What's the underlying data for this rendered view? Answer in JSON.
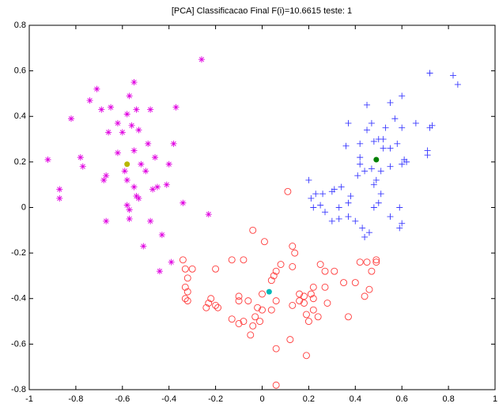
{
  "chart_data": {
    "type": "scatter",
    "title": "[PCA] Classificacao Final F(i)=10.6615 teste: 1",
    "xlim": [
      -1,
      1
    ],
    "xticks": [
      -1,
      -0.8,
      -0.6,
      -0.4,
      -0.2,
      0,
      0.2,
      0.4,
      0.6,
      0.8,
      1
    ],
    "ylim": [
      -0.8,
      0.8
    ],
    "yticks": [
      -0.8,
      -0.6,
      -0.4,
      -0.2,
      0,
      0.2,
      0.4,
      0.6,
      0.8
    ],
    "grid": false,
    "series": [
      {
        "color": "#e000e0",
        "marker": "*",
        "x": [
          -0.92,
          -0.82,
          -0.87,
          -0.87,
          -0.78,
          -0.77,
          -0.74,
          -0.71,
          -0.69,
          -0.67,
          -0.68,
          -0.67,
          -0.65,
          -0.62,
          -0.6,
          -0.58,
          -0.57,
          -0.55,
          -0.56,
          -0.54,
          -0.53,
          -0.55,
          -0.55,
          -0.54,
          -0.53,
          -0.52,
          -0.5,
          -0.49,
          -0.48,
          -0.59,
          -0.58,
          -0.58,
          -0.57,
          -0.57,
          -0.51,
          -0.48,
          -0.46,
          -0.47,
          -0.45,
          -0.43,
          -0.41,
          -0.4,
          -0.39,
          -0.37,
          -0.38,
          -0.44,
          -0.34,
          -0.26,
          -0.23,
          -0.62,
          -0.66
        ],
        "y": [
          0.21,
          0.39,
          0.08,
          0.04,
          0.22,
          0.18,
          0.47,
          0.52,
          0.43,
          0.14,
          0.12,
          -0.06,
          0.44,
          0.37,
          0.33,
          0.41,
          0.49,
          0.55,
          0.36,
          0.43,
          0.34,
          0.25,
          0.09,
          0.05,
          0.04,
          0.19,
          0.16,
          0.28,
          0.43,
          0.16,
          0.12,
          0.01,
          -0.01,
          -0.05,
          -0.17,
          -0.06,
          0.22,
          0.08,
          0.09,
          -0.12,
          0.1,
          0.19,
          -0.24,
          0.44,
          0.28,
          -0.28,
          0.02,
          0.65,
          -0.03,
          0.24,
          0.33
        ]
      },
      {
        "color": "#3a3aff",
        "marker": "+",
        "x": [
          0.37,
          0.36,
          0.42,
          0.45,
          0.45,
          0.47,
          0.5,
          0.52,
          0.52,
          0.53,
          0.55,
          0.57,
          0.6,
          0.6,
          0.66,
          0.72,
          0.73,
          0.72,
          0.82,
          0.84,
          0.71,
          0.71,
          0.6,
          0.61,
          0.62,
          0.55,
          0.51,
          0.48,
          0.47,
          0.44,
          0.42,
          0.42,
          0.41,
          0.38,
          0.37,
          0.33,
          0.33,
          0.3,
          0.27,
          0.26,
          0.23,
          0.21,
          0.2,
          0.22,
          0.25,
          0.3,
          0.31,
          0.34,
          0.37,
          0.4,
          0.43,
          0.46,
          0.44,
          0.48,
          0.5,
          0.55,
          0.59,
          0.6,
          0.59,
          0.51,
          0.49,
          0.55,
          0.58,
          0.48
        ],
        "y": [
          0.37,
          0.27,
          0.28,
          0.34,
          0.45,
          0.37,
          0.3,
          0.3,
          0.26,
          0.35,
          0.46,
          0.39,
          0.35,
          0.49,
          0.37,
          0.35,
          0.36,
          0.59,
          0.58,
          0.54,
          0.25,
          0.23,
          0.19,
          0.21,
          0.2,
          0.18,
          0.16,
          0.1,
          0.17,
          0.16,
          0.22,
          0.19,
          0.14,
          0.05,
          0.02,
          0.0,
          -0.05,
          0.07,
          -0.02,
          0.06,
          0.06,
          0.04,
          0.12,
          0.0,
          0.01,
          -0.06,
          0.08,
          0.09,
          -0.04,
          -0.06,
          -0.09,
          -0.11,
          -0.13,
          0.0,
          0.02,
          -0.04,
          0.0,
          -0.07,
          -0.09,
          0.06,
          0.12,
          0.26,
          0.28,
          0.29
        ]
      },
      {
        "color": "#ff3a3a",
        "marker": "o",
        "x": [
          -0.34,
          -0.33,
          -0.32,
          -0.33,
          -0.32,
          -0.33,
          -0.32,
          -0.3,
          -0.2,
          -0.23,
          -0.24,
          -0.22,
          -0.2,
          -0.19,
          -0.13,
          -0.1,
          -0.08,
          -0.05,
          -0.04,
          -0.03,
          -0.01,
          -0.1,
          -0.1,
          -0.06,
          -0.02,
          0.0,
          0.0,
          0.04,
          0.06,
          0.04,
          0.05,
          0.06,
          0.08,
          0.13,
          0.14,
          0.13,
          0.01,
          -0.04,
          -0.08,
          -0.13,
          0.11,
          0.06,
          0.06,
          0.19,
          0.12,
          0.13,
          0.16,
          0.18,
          0.18,
          0.19,
          0.2,
          0.22,
          0.22,
          0.24,
          0.25,
          0.27,
          0.27,
          0.31,
          0.35,
          0.4,
          0.42,
          0.44,
          0.46,
          0.47,
          0.49,
          0.49,
          0.45,
          0.37,
          0.28,
          0.22,
          0.16,
          0.21
        ],
        "y": [
          -0.23,
          -0.27,
          -0.31,
          -0.35,
          -0.37,
          -0.4,
          -0.41,
          -0.27,
          -0.27,
          -0.42,
          -0.44,
          -0.4,
          -0.43,
          -0.44,
          -0.49,
          -0.51,
          -0.5,
          -0.56,
          -0.52,
          -0.48,
          -0.5,
          -0.39,
          -0.41,
          -0.41,
          -0.44,
          -0.45,
          -0.38,
          -0.45,
          -0.41,
          -0.32,
          -0.3,
          -0.28,
          -0.25,
          -0.17,
          -0.2,
          -0.26,
          -0.15,
          -0.1,
          -0.23,
          -0.23,
          0.07,
          -0.62,
          -0.78,
          -0.65,
          -0.58,
          -0.43,
          -0.38,
          -0.39,
          -0.42,
          -0.47,
          -0.5,
          -0.45,
          -0.35,
          -0.48,
          -0.25,
          -0.28,
          -0.35,
          -0.28,
          -0.33,
          -0.33,
          -0.24,
          -0.39,
          -0.36,
          -0.28,
          -0.24,
          -0.23,
          -0.24,
          -0.48,
          -0.42,
          -0.4,
          -0.41,
          -0.38
        ]
      },
      {
        "color": "#b8b800",
        "marker": ".",
        "x": [
          -0.58
        ],
        "y": [
          0.19
        ]
      },
      {
        "color": "#008000",
        "marker": ".",
        "x": [
          0.49
        ],
        "y": [
          0.21
        ]
      },
      {
        "color": "#00b8b8",
        "marker": ".",
        "x": [
          0.03
        ],
        "y": [
          -0.37
        ]
      }
    ]
  }
}
